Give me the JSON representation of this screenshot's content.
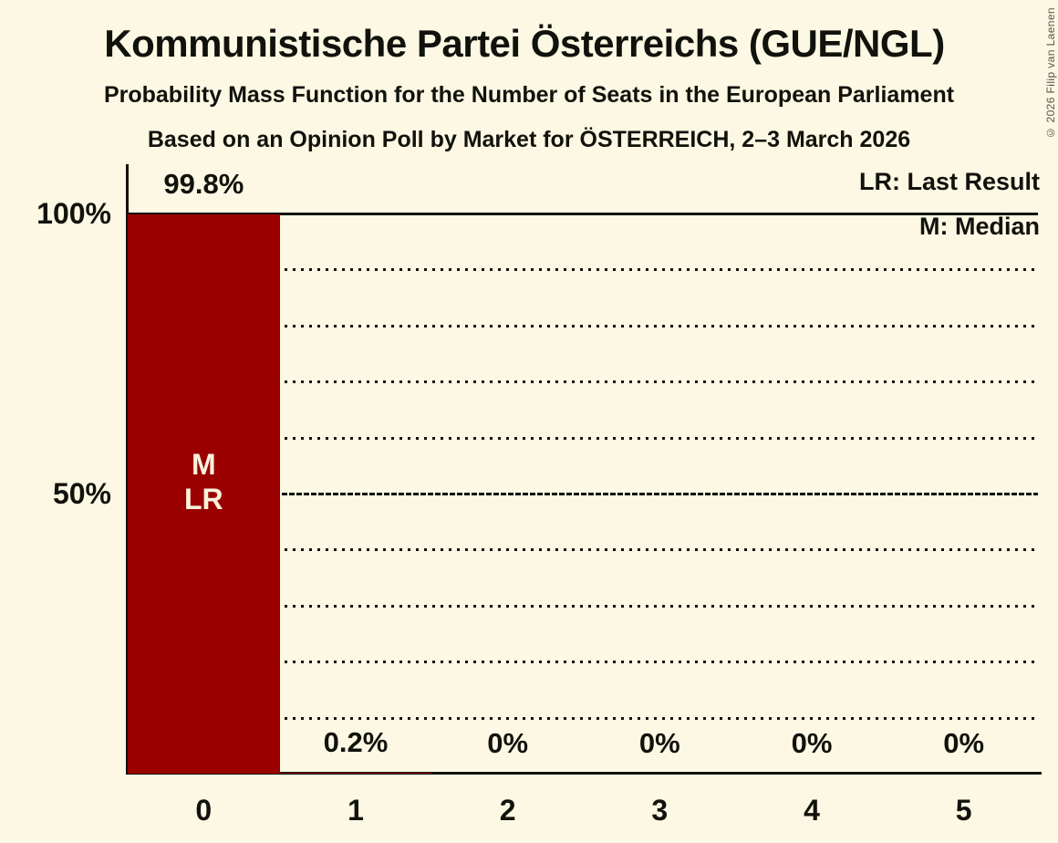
{
  "header": {
    "title": "Kommunistische Partei Österreichs (GUE/NGL)",
    "subtitle1": "Probability Mass Function for the Number of Seats in the European Parliament",
    "subtitle2": "Based on an Opinion Poll by Market for ÖSTERREICH, 2–3 March 2026"
  },
  "copyright": "© 2026 Filip van Laenen",
  "legend": {
    "lr": "LR: Last Result",
    "m": "M: Median"
  },
  "colors": {
    "background": "#FCF8E3",
    "bar": "#9B0000",
    "text": "#12120D",
    "bar_annotation_text": "#F8F2DC"
  },
  "chart_data": {
    "type": "bar",
    "title": "Probability Mass Function for the Number of Seats in the European Parliament",
    "categories": [
      "0",
      "1",
      "2",
      "3",
      "4",
      "5"
    ],
    "values": [
      99.8,
      0.2,
      0,
      0,
      0,
      0
    ],
    "value_labels": [
      "99.8%",
      "0.2%",
      "0%",
      "0%",
      "0%",
      "0%"
    ],
    "bar_annotations": [
      [
        "M",
        "LR"
      ],
      [],
      [],
      [],
      [],
      []
    ],
    "xlabel": "",
    "ylabel": "",
    "ylim": [
      0,
      100
    ],
    "y_ticks": [
      {
        "pct": 100,
        "label": "100%"
      },
      {
        "pct": 50,
        "label": "50%"
      }
    ],
    "gridline_step_pct": 10,
    "major_line_pct": [
      100,
      50
    ],
    "grid": "horizontal dotted every 10%, solid at 100%, dense-dashed at 50%",
    "legend_position": "top-right"
  }
}
